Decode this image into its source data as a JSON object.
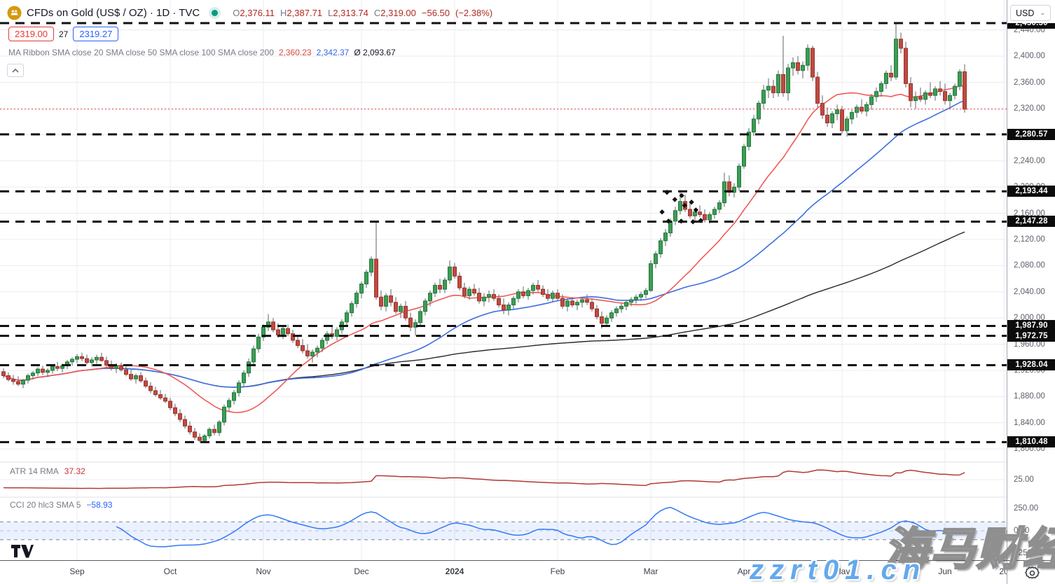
{
  "header": {
    "symbol_title": "CFDs on Gold (US$ / OZ) · 1D · TVC",
    "ohlc": [
      {
        "label": "O",
        "value": "2,376.11"
      },
      {
        "label": "H",
        "value": "2,387.71"
      },
      {
        "label": "L",
        "value": "2,313.74"
      },
      {
        "label": "C",
        "value": "2,319.00"
      }
    ],
    "change": "−56.50",
    "change_pct": "(−2.38%)",
    "bid": "2319.00",
    "spread": "27",
    "ask": "2319.27",
    "ma_ribbon_label": "MA Ribbon SMA close 20 SMA close 50 SMA close 100 SMA close 200",
    "ma_sma20": "2,360.23",
    "ma_sma50": "2,342.37",
    "ma_avg": "Ø 2,093.67"
  },
  "price_axis": {
    "currency": "USD",
    "labels": [
      {
        "v": 2440,
        "t": "2,440.00"
      },
      {
        "v": 2400,
        "t": "2,400.00"
      },
      {
        "v": 2360,
        "t": "2,360.00"
      },
      {
        "v": 2320,
        "t": "2,320.00"
      },
      {
        "v": 2240,
        "t": "2,240.00"
      },
      {
        "v": 2200,
        "t": "2,200.00"
      },
      {
        "v": 2160,
        "t": "2,160.00"
      },
      {
        "v": 2120,
        "t": "2,120.00"
      },
      {
        "v": 2080,
        "t": "2,080.00"
      },
      {
        "v": 2040,
        "t": "2,040.00"
      },
      {
        "v": 2000,
        "t": "2,000.00"
      },
      {
        "v": 1960,
        "t": "1,960.00"
      },
      {
        "v": 1920,
        "t": "1,920.00"
      },
      {
        "v": 1880,
        "t": "1,880.00"
      },
      {
        "v": 1840,
        "t": "1,840.00"
      },
      {
        "v": 1800,
        "t": "1,800.00"
      }
    ],
    "badges": [
      {
        "v": 2450.5,
        "t": "2,450.50"
      },
      {
        "v": 2280.57,
        "t": "2,280.57"
      },
      {
        "v": 2193.44,
        "t": "2,193.44"
      },
      {
        "v": 2147.28,
        "t": "2,147.28"
      },
      {
        "v": 1987.9,
        "t": "1,987.90"
      },
      {
        "v": 1972.75,
        "t": "1,972.75"
      },
      {
        "v": 1928.04,
        "t": "1,928.04"
      },
      {
        "v": 1810.48,
        "t": "1,810.48"
      }
    ],
    "atr_axis_label": {
      "v": 25,
      "t": "25.00"
    },
    "cci_axis_labels": [
      {
        "v": 250,
        "t": "250.00"
      },
      {
        "v": 0,
        "t": "0.00"
      },
      {
        "v": -250,
        "t": "−250.00"
      }
    ]
  },
  "time_axis": [
    {
      "label": "Sep",
      "i": 15
    },
    {
      "label": "Oct",
      "i": 34
    },
    {
      "label": "Nov",
      "i": 53
    },
    {
      "label": "Dec",
      "i": 73
    },
    {
      "label": "2024",
      "i": 92,
      "bold": true
    },
    {
      "label": "Feb",
      "i": 113
    },
    {
      "label": "Mar",
      "i": 132
    },
    {
      "label": "Apr",
      "i": 151
    },
    {
      "label": "May",
      "i": 171
    },
    {
      "label": "Jun",
      "i": 192
    },
    {
      "label": "20",
      "i": 204
    }
  ],
  "indicators": {
    "atr_label": "ATR 14 RMA",
    "atr_value": "37.32",
    "cci_label": "CCI 20 hlc3 SMA 5",
    "cci_value": "−58.93"
  },
  "watermark": {
    "line1": "海马财经",
    "line2": "zzrt01.cn"
  },
  "chart_data": {
    "type": "candlestick",
    "title": "CFDs on Gold (US$ / OZ) daily, Aug 2023 – Jun 2024",
    "currency": "USD",
    "last_bar": {
      "open": 2376.11,
      "high": 2387.71,
      "low": 2313.74,
      "close": 2319.0,
      "change": -56.5,
      "change_pct": -2.38
    },
    "price_range": [
      1780,
      2456
    ],
    "horizontal_levels": [
      2450.5,
      2280.57,
      2193.44,
      2147.28,
      1987.9,
      1972.75,
      1928.04,
      1810.48
    ],
    "close_price_line": 2319.0,
    "ma_ribbon": {
      "sma20": 2360.23,
      "sma50": 2342.37,
      "average": 2093.67
    },
    "atr": {
      "period": 14,
      "smoothing": "RMA",
      "current": 37.32
    },
    "cci": {
      "period": 20,
      "source": "hlc3",
      "smoothing": "SMA 5",
      "current": -58.93,
      "band": [
        -100,
        100
      ]
    },
    "annotation_dots": [
      [
        134.3,
        2162
      ],
      [
        135.3,
        2192
      ],
      [
        135.6,
        2148
      ],
      [
        136.9,
        2181
      ],
      [
        138.2,
        2148
      ],
      [
        138.3,
        2187
      ],
      [
        138.9,
        2172
      ],
      [
        140.3,
        2177
      ],
      [
        140.6,
        2147
      ],
      [
        141.2,
        2165
      ],
      [
        142.2,
        2149
      ]
    ],
    "candles": [
      [
        1918,
        1923,
        1908,
        1912
      ],
      [
        1912,
        1917,
        1903,
        1906
      ],
      [
        1906,
        1913,
        1898,
        1903
      ],
      [
        1903,
        1911,
        1896,
        1899
      ],
      [
        1899,
        1907,
        1893,
        1905
      ],
      [
        1905,
        1915,
        1900,
        1912
      ],
      [
        1912,
        1919,
        1906,
        1916
      ],
      [
        1916,
        1925,
        1911,
        1922
      ],
      [
        1922,
        1927,
        1913,
        1917
      ],
      [
        1917,
        1923,
        1910,
        1920
      ],
      [
        1920,
        1929,
        1915,
        1926
      ],
      [
        1926,
        1933,
        1919,
        1923
      ],
      [
        1923,
        1930,
        1917,
        1927
      ],
      [
        1927,
        1936,
        1922,
        1933
      ],
      [
        1933,
        1940,
        1927,
        1937
      ],
      [
        1937,
        1945,
        1931,
        1941
      ],
      [
        1941,
        1947,
        1934,
        1938
      ],
      [
        1938,
        1944,
        1929,
        1932
      ],
      [
        1932,
        1940,
        1926,
        1936
      ],
      [
        1936,
        1944,
        1930,
        1940
      ],
      [
        1940,
        1947,
        1933,
        1935
      ],
      [
        1935,
        1941,
        1925,
        1928
      ],
      [
        1928,
        1935,
        1920,
        1923
      ],
      [
        1923,
        1931,
        1916,
        1927
      ],
      [
        1927,
        1932,
        1918,
        1921
      ],
      [
        1921,
        1926,
        1911,
        1914
      ],
      [
        1914,
        1921,
        1904,
        1907
      ],
      [
        1907,
        1915,
        1900,
        1912
      ],
      [
        1912,
        1917,
        1901,
        1904
      ],
      [
        1904,
        1909,
        1893,
        1896
      ],
      [
        1896,
        1902,
        1885,
        1889
      ],
      [
        1889,
        1895,
        1880,
        1883
      ],
      [
        1883,
        1890,
        1875,
        1878
      ],
      [
        1878,
        1884,
        1870,
        1873
      ],
      [
        1873,
        1878,
        1859,
        1863
      ],
      [
        1863,
        1869,
        1850,
        1854
      ],
      [
        1854,
        1861,
        1841,
        1845
      ],
      [
        1845,
        1851,
        1831,
        1835
      ],
      [
        1835,
        1842,
        1822,
        1826
      ],
      [
        1826,
        1832,
        1814,
        1818
      ],
      [
        1818,
        1824,
        1810,
        1813
      ],
      [
        1813,
        1823,
        1809,
        1820
      ],
      [
        1820,
        1833,
        1816,
        1830
      ],
      [
        1830,
        1837,
        1821,
        1825
      ],
      [
        1825,
        1844,
        1820,
        1841
      ],
      [
        1841,
        1868,
        1836,
        1864
      ],
      [
        1864,
        1878,
        1857,
        1874
      ],
      [
        1874,
        1890,
        1868,
        1886
      ],
      [
        1886,
        1905,
        1880,
        1901
      ],
      [
        1901,
        1920,
        1895,
        1916
      ],
      [
        1916,
        1938,
        1910,
        1933
      ],
      [
        1933,
        1958,
        1927,
        1953
      ],
      [
        1953,
        1976,
        1947,
        1971
      ],
      [
        1971,
        1990,
        1965,
        1986
      ],
      [
        1986,
        2006,
        1980,
        1994
      ],
      [
        1994,
        2000,
        1978,
        1982
      ],
      [
        1982,
        1992,
        1970,
        1974
      ],
      [
        1974,
        1988,
        1968,
        1984
      ],
      [
        1984,
        1990,
        1972,
        1976
      ],
      [
        1976,
        1982,
        1962,
        1966
      ],
      [
        1966,
        1974,
        1954,
        1958
      ],
      [
        1958,
        1968,
        1946,
        1950
      ],
      [
        1950,
        1960,
        1938,
        1942
      ],
      [
        1942,
        1952,
        1932,
        1948
      ],
      [
        1948,
        1958,
        1940,
        1954
      ],
      [
        1954,
        1970,
        1948,
        1966
      ],
      [
        1966,
        1980,
        1960,
        1976
      ],
      [
        1976,
        1988,
        1968,
        1972
      ],
      [
        1972,
        1986,
        1966,
        1982
      ],
      [
        1982,
        1998,
        1976,
        1994
      ],
      [
        1994,
        2012,
        1988,
        2008
      ],
      [
        2008,
        2026,
        2002,
        2022
      ],
      [
        2022,
        2042,
        2016,
        2038
      ],
      [
        2038,
        2056,
        2030,
        2052
      ],
      [
        2052,
        2074,
        2046,
        2070
      ],
      [
        2070,
        2094,
        2064,
        2090
      ],
      [
        2090,
        2147,
        2028,
        2032
      ],
      [
        2032,
        2042,
        2012,
        2018
      ],
      [
        2018,
        2038,
        2010,
        2034
      ],
      [
        2034,
        2044,
        2018,
        2024
      ],
      [
        2024,
        2032,
        2006,
        2010
      ],
      [
        2010,
        2022,
        2000,
        2018
      ],
      [
        2018,
        2026,
        1996,
        2000
      ],
      [
        2000,
        2008,
        1980,
        1986
      ],
      [
        1986,
        1998,
        1973,
        1993
      ],
      [
        1993,
        2014,
        1988,
        2010
      ],
      [
        2010,
        2030,
        2004,
        2026
      ],
      [
        2026,
        2042,
        2018,
        2038
      ],
      [
        2038,
        2054,
        2032,
        2050
      ],
      [
        2050,
        2060,
        2038,
        2044
      ],
      [
        2044,
        2062,
        2038,
        2058
      ],
      [
        2058,
        2088,
        2052,
        2078
      ],
      [
        2078,
        2084,
        2060,
        2064
      ],
      [
        2064,
        2070,
        2042,
        2046
      ],
      [
        2046,
        2054,
        2030,
        2034
      ],
      [
        2034,
        2048,
        2028,
        2044
      ],
      [
        2044,
        2052,
        2034,
        2038
      ],
      [
        2038,
        2046,
        2022,
        2026
      ],
      [
        2026,
        2038,
        2018,
        2032
      ],
      [
        2032,
        2042,
        2024,
        2036
      ],
      [
        2036,
        2044,
        2026,
        2030
      ],
      [
        2030,
        2036,
        2016,
        2020
      ],
      [
        2020,
        2030,
        2006,
        2012
      ],
      [
        2012,
        2024,
        2004,
        2020
      ],
      [
        2020,
        2034,
        2014,
        2030
      ],
      [
        2030,
        2044,
        2024,
        2040
      ],
      [
        2040,
        2048,
        2030,
        2034
      ],
      [
        2034,
        2046,
        2028,
        2042
      ],
      [
        2042,
        2054,
        2036,
        2050
      ],
      [
        2050,
        2058,
        2040,
        2044
      ],
      [
        2044,
        2050,
        2032,
        2036
      ],
      [
        2036,
        2044,
        2026,
        2030
      ],
      [
        2030,
        2042,
        2024,
        2038
      ],
      [
        2038,
        2044,
        2026,
        2030
      ],
      [
        2030,
        2036,
        2014,
        2018
      ],
      [
        2018,
        2030,
        2010,
        2026
      ],
      [
        2026,
        2032,
        2016,
        2020
      ],
      [
        2020,
        2028,
        2012,
        2024
      ],
      [
        2024,
        2032,
        2016,
        2028
      ],
      [
        2028,
        2036,
        2020,
        2024
      ],
      [
        2024,
        2030,
        2010,
        2014
      ],
      [
        2014,
        2020,
        1998,
        2002
      ],
      [
        2002,
        2010,
        1984,
        1992
      ],
      [
        1992,
        2004,
        1988,
        2000
      ],
      [
        2000,
        2012,
        1994,
        2008
      ],
      [
        2008,
        2018,
        2002,
        2014
      ],
      [
        2014,
        2022,
        2008,
        2018
      ],
      [
        2018,
        2028,
        2012,
        2024
      ],
      [
        2024,
        2032,
        2018,
        2028
      ],
      [
        2028,
        2036,
        2022,
        2032
      ],
      [
        2032,
        2040,
        2026,
        2036
      ],
      [
        2036,
        2046,
        2030,
        2042
      ],
      [
        2042,
        2088,
        2040,
        2083
      ],
      [
        2083,
        2102,
        2076,
        2098
      ],
      [
        2098,
        2122,
        2092,
        2118
      ],
      [
        2118,
        2136,
        2110,
        2130
      ],
      [
        2130,
        2152,
        2124,
        2148
      ],
      [
        2148,
        2170,
        2142,
        2164
      ],
      [
        2164,
        2195,
        2158,
        2178
      ],
      [
        2178,
        2188,
        2162,
        2166
      ],
      [
        2166,
        2176,
        2152,
        2156
      ],
      [
        2156,
        2168,
        2148,
        2162
      ],
      [
        2162,
        2172,
        2154,
        2158
      ],
      [
        2158,
        2166,
        2146,
        2150
      ],
      [
        2150,
        2162,
        2144,
        2158
      ],
      [
        2158,
        2170,
        2152,
        2166
      ],
      [
        2166,
        2180,
        2160,
        2176
      ],
      [
        2176,
        2222,
        2170,
        2208
      ],
      [
        2208,
        2218,
        2186,
        2192
      ],
      [
        2192,
        2206,
        2184,
        2200
      ],
      [
        2200,
        2236,
        2194,
        2232
      ],
      [
        2232,
        2266,
        2228,
        2262
      ],
      [
        2262,
        2290,
        2256,
        2284
      ],
      [
        2284,
        2310,
        2278,
        2304
      ],
      [
        2304,
        2332,
        2296,
        2328
      ],
      [
        2328,
        2356,
        2320,
        2348
      ],
      [
        2348,
        2366,
        2336,
        2354
      ],
      [
        2354,
        2364,
        2336,
        2344
      ],
      [
        2344,
        2378,
        2338,
        2372
      ],
      [
        2372,
        2431,
        2338,
        2344
      ],
      [
        2344,
        2388,
        2332,
        2382
      ],
      [
        2382,
        2398,
        2370,
        2390
      ],
      [
        2390,
        2400,
        2372,
        2378
      ],
      [
        2378,
        2392,
        2366,
        2386
      ],
      [
        2386,
        2418,
        2378,
        2412
      ],
      [
        2412,
        2416,
        2362,
        2368
      ],
      [
        2368,
        2376,
        2322,
        2328
      ],
      [
        2328,
        2340,
        2304,
        2310
      ],
      [
        2310,
        2322,
        2292,
        2298
      ],
      [
        2298,
        2316,
        2290,
        2312
      ],
      [
        2312,
        2326,
        2302,
        2318
      ],
      [
        2318,
        2324,
        2281,
        2286
      ],
      [
        2286,
        2308,
        2277,
        2304
      ],
      [
        2304,
        2318,
        2296,
        2314
      ],
      [
        2314,
        2326,
        2306,
        2322
      ],
      [
        2322,
        2334,
        2312,
        2316
      ],
      [
        2316,
        2330,
        2308,
        2326
      ],
      [
        2326,
        2342,
        2318,
        2338
      ],
      [
        2338,
        2352,
        2330,
        2346
      ],
      [
        2346,
        2362,
        2338,
        2358
      ],
      [
        2358,
        2378,
        2350,
        2374
      ],
      [
        2374,
        2386,
        2362,
        2368
      ],
      [
        2368,
        2450,
        2364,
        2426
      ],
      [
        2426,
        2436,
        2404,
        2412
      ],
      [
        2412,
        2422,
        2352,
        2358
      ],
      [
        2358,
        2368,
        2322,
        2332
      ],
      [
        2332,
        2346,
        2320,
        2338
      ],
      [
        2338,
        2352,
        2330,
        2334
      ],
      [
        2334,
        2348,
        2326,
        2344
      ],
      [
        2344,
        2360,
        2336,
        2340
      ],
      [
        2340,
        2354,
        2332,
        2350
      ],
      [
        2350,
        2362,
        2340,
        2346
      ],
      [
        2346,
        2358,
        2326,
        2332
      ],
      [
        2332,
        2344,
        2320,
        2340
      ],
      [
        2340,
        2358,
        2334,
        2354
      ],
      [
        2354,
        2380,
        2348,
        2376
      ],
      [
        2376.11,
        2387.71,
        2313.74,
        2319.0
      ]
    ]
  }
}
